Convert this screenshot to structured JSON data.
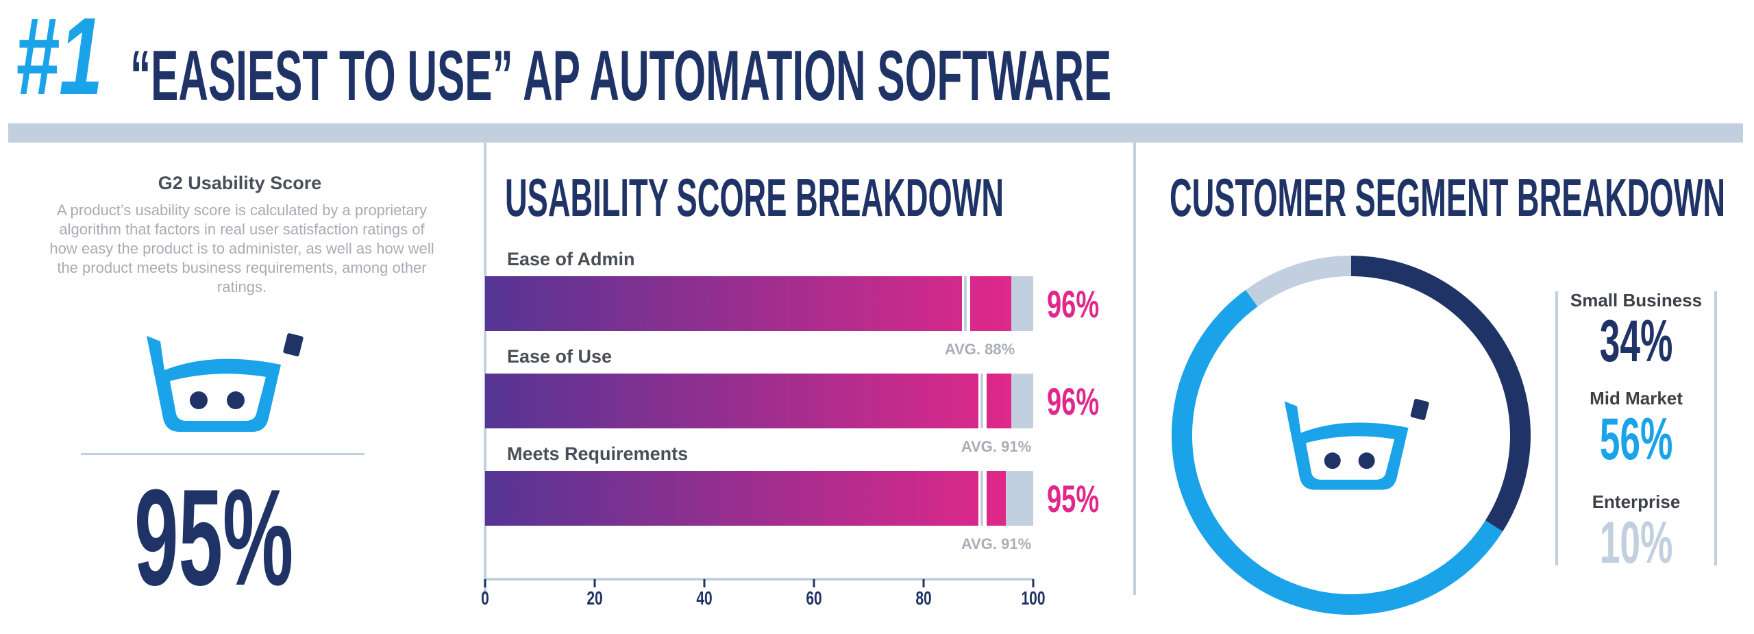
{
  "header": {
    "rank": "#1",
    "title": "“EASIEST TO USE” AP AUTOMATION SOFTWARE"
  },
  "g2": {
    "title": "G2 Usability Score",
    "description": "A product’s usability score is calculated by a proprietary algorithm that factors in real user satisfaction ratings of how easy the product is to administer, as well as how well the product meets business requirements, among other ratings.",
    "score": "95%"
  },
  "colors": {
    "navy": "#1f3366",
    "blue": "#1aa3e8",
    "magenta": "#e0288a",
    "purple": "#553594",
    "grey": "#c2cfdf",
    "avg_label": "#a8aeb6"
  },
  "chart_data": [
    {
      "type": "bar",
      "orientation": "horizontal",
      "title": "USABILITY SCORE BREAKDOWN",
      "categories": [
        "Ease of Admin",
        "Ease of Use",
        "Meets Requirements"
      ],
      "series": [
        {
          "name": "Score",
          "values": [
            96,
            96,
            95
          ]
        },
        {
          "name": "Average",
          "values": [
            88,
            91,
            91
          ]
        }
      ],
      "value_labels": [
        "96%",
        "96%",
        "95%"
      ],
      "avg_labels": [
        "AVG. 88%",
        "AVG. 91%",
        "AVG. 91%"
      ],
      "xlim": [
        0,
        100
      ],
      "xticks": [
        0,
        20,
        40,
        60,
        80,
        100
      ]
    },
    {
      "type": "pie",
      "donut": true,
      "title": "CUSTOMER SEGMENT BREAKDOWN",
      "categories": [
        "Small Business",
        "Mid Market",
        "Enterprise"
      ],
      "values": [
        34,
        56,
        10
      ],
      "value_labels": [
        "34%",
        "56%",
        "10%"
      ],
      "colors": [
        "#1f3366",
        "#1aa3e8",
        "#c2cfdf"
      ]
    }
  ]
}
